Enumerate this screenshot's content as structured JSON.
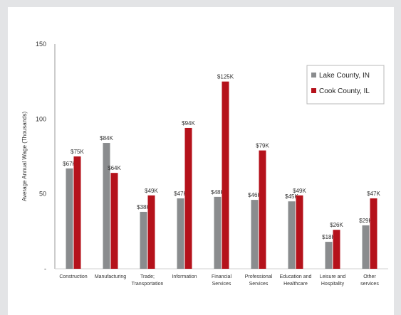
{
  "chart_data": {
    "type": "bar",
    "ylabel": "Average Annual Wage (Thousands)",
    "yticks": [
      "150",
      "100",
      "50",
      "-"
    ],
    "ylim": [
      0,
      150
    ],
    "grid": false,
    "legend_position": "top-right",
    "categories": [
      [
        "Construction"
      ],
      [
        "Manufacturing"
      ],
      [
        "Trade;",
        "Transportation"
      ],
      [
        "Information"
      ],
      [
        "Financial",
        "Services"
      ],
      [
        "Professional",
        "Services"
      ],
      [
        "Education and",
        "Healthcare"
      ],
      [
        "Leisure and",
        "Hospitality"
      ],
      [
        "Other",
        "services"
      ]
    ],
    "series": [
      {
        "name": "Lake County, IN",
        "color": "#8a8c8e",
        "values": [
          67,
          84,
          38,
          47,
          48,
          46,
          45,
          18,
          29
        ],
        "labels": [
          "$67K",
          "$84K",
          "$38K",
          "$47K",
          "$48K",
          "$46K",
          "$45K",
          "$18K",
          "$29K"
        ]
      },
      {
        "name": "Cook County, IL",
        "color": "#b5121b",
        "values": [
          75,
          64,
          49,
          94,
          125,
          79,
          49,
          26,
          47
        ],
        "labels": [
          "$75K",
          "$64K",
          "$49K",
          "$94K",
          "$125K",
          "$79K",
          "$49K",
          "$26K",
          "$47K"
        ]
      }
    ]
  }
}
